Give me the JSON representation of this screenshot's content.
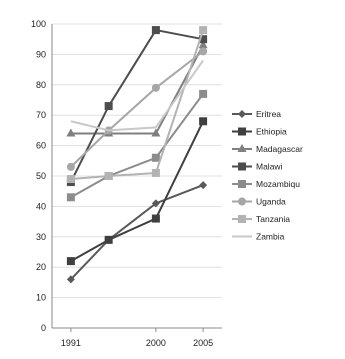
{
  "chart_data": {
    "type": "line",
    "title": "",
    "xlabel": "",
    "ylabel": "",
    "x": [
      1991,
      1995,
      2000,
      2005
    ],
    "x_tick_labels": [
      "1991",
      "2000",
      "2005"
    ],
    "x_tick_values": [
      1991,
      2000,
      2005
    ],
    "xlim": [
      1989,
      2007
    ],
    "ylim": [
      0,
      100
    ],
    "y_ticks": [
      0,
      10,
      20,
      30,
      40,
      50,
      60,
      70,
      80,
      90,
      100
    ],
    "grid": "horizontal",
    "legend_position": "right",
    "series": [
      {
        "name": "Eritrea",
        "values": [
          16,
          29,
          41,
          47
        ],
        "color": "#595959",
        "marker": "diamond"
      },
      {
        "name": "Ethiopia",
        "values": [
          22,
          29,
          36,
          68
        ],
        "color": "#3f3f3f",
        "marker": "square"
      },
      {
        "name": "Madagascar",
        "values": [
          64,
          64,
          64,
          93
        ],
        "color": "#7f7f7f",
        "marker": "triangle"
      },
      {
        "name": "Malawi",
        "values": [
          48,
          73,
          98,
          95
        ],
        "color": "#4d4d4d",
        "marker": "square"
      },
      {
        "name": "Mozambiqu",
        "values": [
          43,
          50,
          56,
          77
        ],
        "color": "#8c8c8c",
        "marker": "square"
      },
      {
        "name": "Uganda",
        "values": [
          53,
          65,
          79,
          91
        ],
        "color": "#a6a6a6",
        "marker": "circle"
      },
      {
        "name": "Tanzania",
        "values": [
          49,
          50,
          51,
          98
        ],
        "color": "#b3b3b3",
        "marker": "square"
      },
      {
        "name": "Zambia",
        "values": [
          68,
          65,
          66,
          88
        ],
        "color": "#c8c8c8",
        "marker": "none"
      }
    ]
  }
}
